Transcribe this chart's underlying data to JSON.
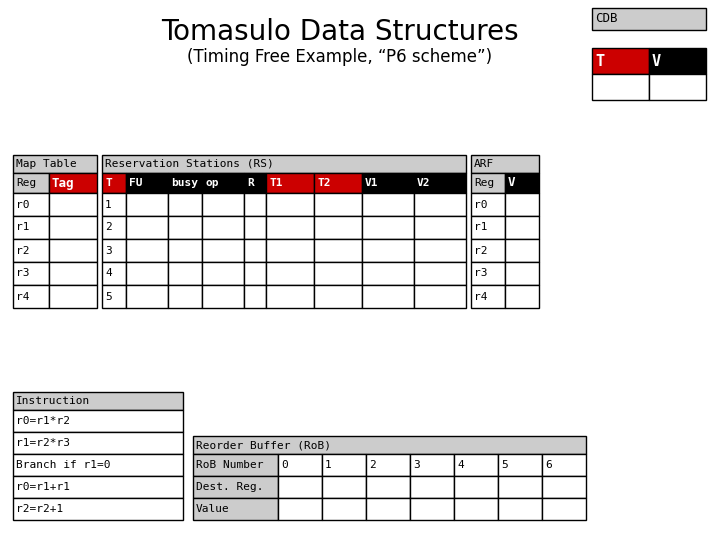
{
  "title": "Tomasulo Data Structures",
  "subtitle": "(Timing Free Example, “P6 scheme”)",
  "bg_color": "#ffffff",
  "cdb_label": "CDB",
  "cdb_cols": [
    "T",
    "V"
  ],
  "cdb_col_colors": [
    "#cc0000",
    "#000000"
  ],
  "map_table_title": "Map Table",
  "map_header": [
    "Reg",
    "Tag"
  ],
  "map_header_colors": [
    "#cccccc",
    "#cc0000"
  ],
  "map_header_text_colors": [
    "#000000",
    "#ffffff"
  ],
  "map_rows": [
    "r0",
    "r1",
    "r2",
    "r3",
    "r4"
  ],
  "rs_title": "Reservation Stations (RS)",
  "rs_header": [
    "T",
    "FU",
    "busy",
    "op",
    "R",
    "T1",
    "T2",
    "V1",
    "V2"
  ],
  "rs_header_colors": [
    "#cc0000",
    "#000000",
    "#000000",
    "#000000",
    "#000000",
    "#cc0000",
    "#cc0000",
    "#000000",
    "#000000"
  ],
  "rs_header_text_colors": [
    "#ffffff",
    "#ffffff",
    "#ffffff",
    "#ffffff",
    "#ffffff",
    "#ffffff",
    "#ffffff",
    "#ffffff",
    "#ffffff"
  ],
  "rs_rows": [
    "1",
    "2",
    "3",
    "4",
    "5"
  ],
  "arf_title": "ARF",
  "arf_header": [
    "Reg",
    "V"
  ],
  "arf_header_colors": [
    "#cccccc",
    "#000000"
  ],
  "arf_header_text_colors": [
    "#000000",
    "#ffffff"
  ],
  "arf_rows": [
    "r0",
    "r1",
    "r2",
    "r3",
    "r4"
  ],
  "inst_title": "Instruction",
  "inst_rows": [
    "r0=r1*r2",
    "r1=r2*r3",
    "Branch if r1=0",
    "r0=r1+r1",
    "r2=r2+1"
  ],
  "rob_title": "Reorder Buffer (RoB)",
  "rob_header_label": "RoB Number",
  "rob_cols": [
    "0",
    "1",
    "2",
    "3",
    "4",
    "5",
    "6"
  ],
  "rob_row_labels": [
    "Dest. Reg.",
    "Value"
  ]
}
